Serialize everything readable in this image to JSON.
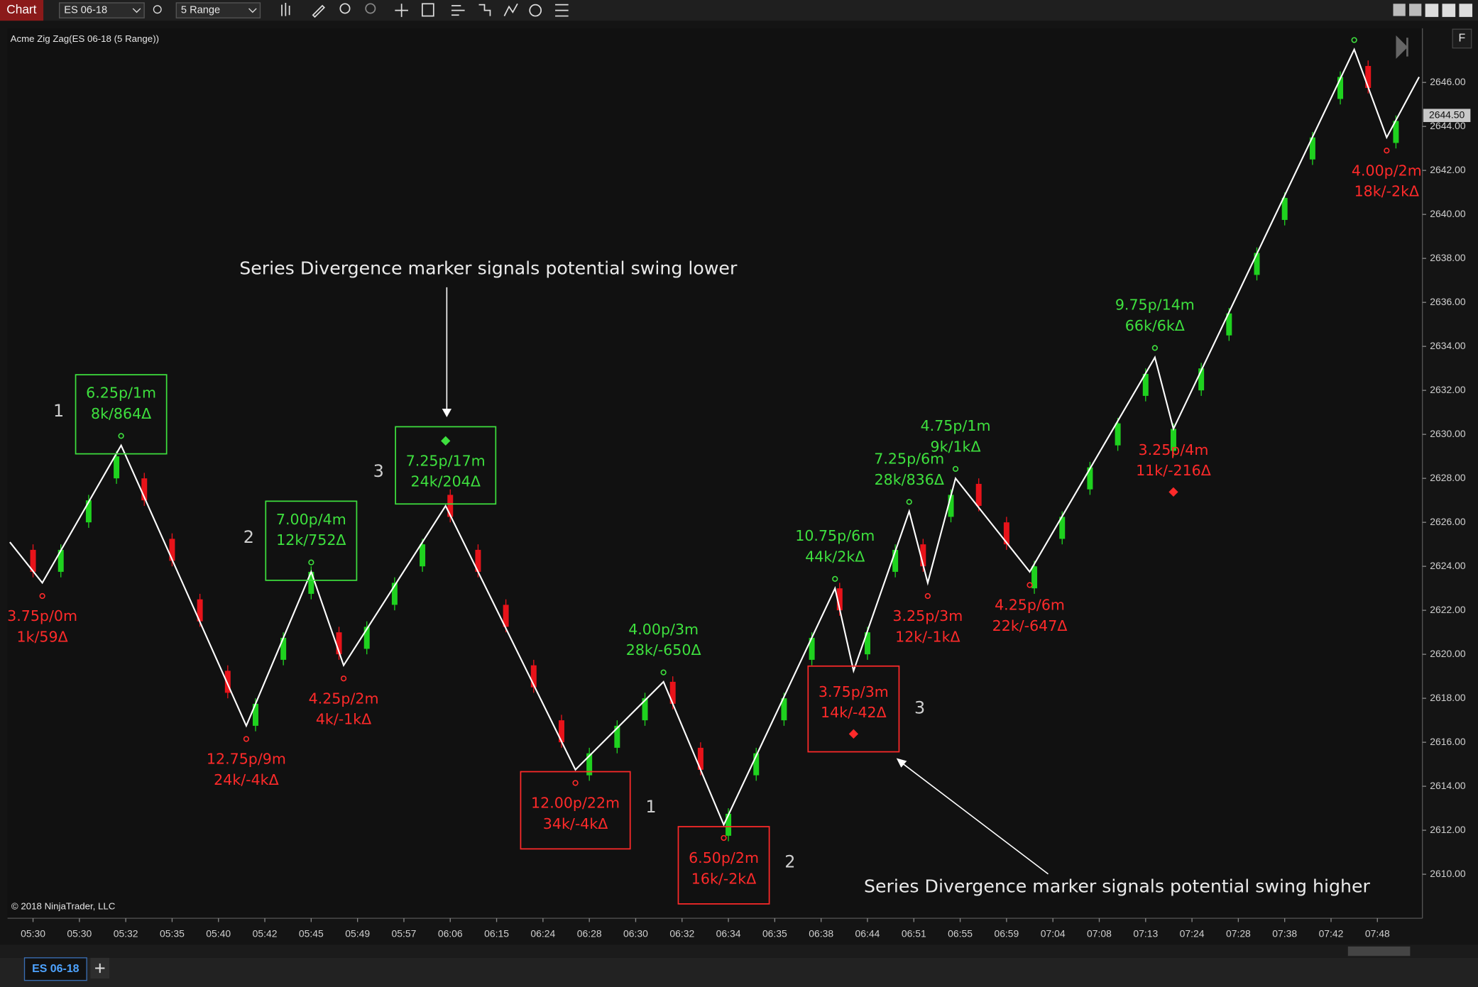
{
  "toolbar": {
    "label": "Chart",
    "instrument": "ES 06-18",
    "interval": "5 Range"
  },
  "tab": "ES 06-18",
  "panel_button": "F",
  "chart_data": {
    "type": "candlestick",
    "title": "Acme Zig Zag(ES 06-18 (5 Range))",
    "copyright": "© 2018 NinjaTrader, LLC",
    "annotations": [
      "Series Divergence marker signals potential swing lower",
      "Series Divergence marker signals potential swing higher"
    ],
    "up_color": "#1fd21f",
    "down_color": "#e8131a",
    "line_color": "#ffffff",
    "high_label_color": "#3ee03e",
    "low_label_color": "#ff2a2a",
    "grid": false,
    "xlim": [
      -5.5,
      299.5
    ],
    "xticks": [
      {
        "value": 0,
        "label": "05:30"
      },
      {
        "value": 10,
        "label": "05:30"
      },
      {
        "value": 20,
        "label": "05:32"
      },
      {
        "value": 30,
        "label": "05:35"
      },
      {
        "value": 40,
        "label": "05:40"
      },
      {
        "value": 50,
        "label": "05:42"
      },
      {
        "value": 60,
        "label": "05:45"
      },
      {
        "value": 70,
        "label": "05:49"
      },
      {
        "value": 80,
        "label": "05:57"
      },
      {
        "value": 90,
        "label": "06:06"
      },
      {
        "value": 100,
        "label": "06:15"
      },
      {
        "value": 110,
        "label": "06:24"
      },
      {
        "value": 120,
        "label": "06:28"
      },
      {
        "value": 130,
        "label": "06:30"
      },
      {
        "value": 140,
        "label": "06:32"
      },
      {
        "value": 150,
        "label": "06:34"
      },
      {
        "value": 160,
        "label": "06:35"
      },
      {
        "value": 170,
        "label": "06:38"
      },
      {
        "value": 180,
        "label": "06:44"
      },
      {
        "value": 190,
        "label": "06:51"
      },
      {
        "value": 200,
        "label": "06:55"
      },
      {
        "value": 210,
        "label": "06:59"
      },
      {
        "value": 220,
        "label": "07:04"
      },
      {
        "value": 230,
        "label": "07:08"
      },
      {
        "value": 240,
        "label": "07:13"
      },
      {
        "value": 250,
        "label": "07:24"
      },
      {
        "value": 260,
        "label": "07:28"
      },
      {
        "value": 270,
        "label": "07:38"
      },
      {
        "value": 280,
        "label": "07:42"
      },
      {
        "value": 290,
        "label": "07:48"
      }
    ],
    "ylim": [
      2608,
      2648.25
    ],
    "yticks": [
      {
        "value": 2610,
        "label": "2610.00"
      },
      {
        "value": 2612,
        "label": "2612.00"
      },
      {
        "value": 2614,
        "label": "2614.00"
      },
      {
        "value": 2616,
        "label": "2616.00"
      },
      {
        "value": 2618,
        "label": "2618.00"
      },
      {
        "value": 2620,
        "label": "2620.00"
      },
      {
        "value": 2622,
        "label": "2622.00"
      },
      {
        "value": 2624,
        "label": "2624.00"
      },
      {
        "value": 2626,
        "label": "2626.00"
      },
      {
        "value": 2628,
        "label": "2628.00"
      },
      {
        "value": 2630,
        "label": "2630.00"
      },
      {
        "value": 2632,
        "label": "2632.00"
      },
      {
        "value": 2634,
        "label": "2634.00"
      },
      {
        "value": 2636,
        "label": "2636.00"
      },
      {
        "value": 2638,
        "label": "2638.00"
      },
      {
        "value": 2640,
        "label": "2640.00"
      },
      {
        "value": 2642,
        "label": "2642.00"
      },
      {
        "value": 2644,
        "label": "2644.00"
      },
      {
        "value": 2646,
        "label": "2646.00"
      }
    ],
    "last_price": {
      "value": 2644.5,
      "label": "2644.50"
    },
    "candles": {
      "x": [
        0,
        6,
        12,
        18,
        24,
        30,
        36,
        42,
        48,
        54,
        60,
        66,
        72,
        78,
        84,
        90,
        96,
        102,
        108,
        114,
        120,
        126,
        132,
        138,
        144,
        150,
        156,
        162,
        168,
        174,
        180,
        186,
        192,
        198,
        204,
        210,
        216,
        222,
        228,
        234,
        240,
        246,
        252,
        258,
        264,
        270,
        276,
        282,
        288,
        294
      ],
      "open": [
        2624.75,
        2623.75,
        2626,
        2628,
        2628,
        2625.25,
        2622.5,
        2619.25,
        2616.75,
        2619.75,
        2622.75,
        2621,
        2620.25,
        2622.25,
        2624,
        2627.25,
        2624.75,
        2622.25,
        2619.5,
        2617,
        2614.5,
        2615.75,
        2617,
        2618.75,
        2615.75,
        2611.75,
        2614.5,
        2617,
        2619.75,
        2623,
        2620,
        2623.75,
        2625,
        2626.25,
        2627.75,
        2626,
        2623,
        2625.25,
        2627.5,
        2629.5,
        2631.75,
        2629.25,
        2632,
        2634.5,
        2637.25,
        2639.75,
        2642.5,
        2645.25,
        2646.75,
        2643.25
      ],
      "high": [
        2625,
        2625,
        2627.25,
        2629.25,
        2628.25,
        2625.5,
        2622.75,
        2619.5,
        2618,
        2621,
        2624,
        2621.25,
        2621.5,
        2623.5,
        2625.25,
        2627.5,
        2625,
        2622.5,
        2619.75,
        2617.25,
        2615.75,
        2617,
        2618.25,
        2619,
        2616,
        2613,
        2615.75,
        2618.25,
        2621,
        2623.25,
        2621.25,
        2625,
        2625.25,
        2627.5,
        2628,
        2626.25,
        2624.25,
        2626.5,
        2628.75,
        2630.75,
        2633,
        2630.5,
        2633.25,
        2635.75,
        2638.5,
        2641,
        2643.75,
        2646.5,
        2647,
        2644.5
      ],
      "low": [
        2623.5,
        2623.5,
        2625.75,
        2627.75,
        2626.75,
        2624,
        2621.25,
        2618,
        2616.5,
        2619.5,
        2622.5,
        2619.75,
        2620,
        2622,
        2623.75,
        2626,
        2623.5,
        2621,
        2618.25,
        2615.75,
        2614.25,
        2615.5,
        2616.75,
        2617.5,
        2614.5,
        2611.5,
        2614.25,
        2616.75,
        2619.5,
        2621.75,
        2619.75,
        2623.5,
        2623.75,
        2626,
        2626.5,
        2624.75,
        2622.75,
        2625,
        2627.25,
        2629.25,
        2631.5,
        2629,
        2631.75,
        2634.25,
        2637,
        2639.5,
        2642.25,
        2645,
        2645.5,
        2643
      ],
      "close": [
        2623.75,
        2624.75,
        2627,
        2629,
        2627,
        2624.25,
        2621.5,
        2618.25,
        2617.75,
        2620.75,
        2623.75,
        2620,
        2621.25,
        2623.25,
        2625,
        2626.25,
        2623.75,
        2621.25,
        2618.5,
        2616,
        2615.5,
        2616.75,
        2618,
        2617.75,
        2614.75,
        2612.75,
        2615.5,
        2618,
        2620.75,
        2622,
        2621,
        2624.75,
        2624,
        2627.25,
        2626.75,
        2625,
        2624,
        2626.25,
        2628.5,
        2630.5,
        2632.75,
        2630.25,
        2633,
        2635.5,
        2638.25,
        2640.75,
        2643.5,
        2646.25,
        2645.75,
        2644.25
      ]
    },
    "zigzag": [
      {
        "x": -5,
        "y": 2625.1
      },
      {
        "x": 2,
        "y": 2623.25,
        "labels": [
          "3.75p/0m",
          "1k/59Δ"
        ]
      },
      {
        "x": 19,
        "y": 2629.5,
        "labels": [
          "6.25p/1m",
          "8k/864Δ"
        ],
        "boxed": true,
        "count": 1
      },
      {
        "x": 46,
        "y": 2616.75,
        "labels": [
          "12.75p/9m",
          "24k/-4kΔ"
        ]
      },
      {
        "x": 60,
        "y": 2623.75,
        "labels": [
          "7.00p/4m",
          "12k/752Δ"
        ],
        "boxed": true,
        "count": 2
      },
      {
        "x": 67,
        "y": 2619.5,
        "labels": [
          "4.25p/2m",
          "4k/-1kΔ"
        ]
      },
      {
        "x": 89,
        "y": 2626.75,
        "labels": [
          "7.25p/17m",
          "24k/204Δ"
        ],
        "boxed": true,
        "divergence": true,
        "count": 3
      },
      {
        "x": 117,
        "y": 2614.75,
        "labels": [
          "12.00p/22m",
          "34k/-4kΔ"
        ],
        "boxed": true,
        "count": 1
      },
      {
        "x": 136,
        "y": 2618.75,
        "labels": [
          "4.00p/3m",
          "28k/-650Δ"
        ]
      },
      {
        "x": 149,
        "y": 2612.25,
        "labels": [
          "6.50p/2m",
          "16k/-2kΔ"
        ],
        "boxed": true,
        "count": 2
      },
      {
        "x": 173,
        "y": 2623,
        "labels": [
          "10.75p/6m",
          "44k/2kΔ"
        ]
      },
      {
        "x": 177,
        "y": 2619.25,
        "labels": [
          "3.75p/3m",
          "14k/-42Δ"
        ],
        "boxed": true,
        "divergence": true,
        "count": 3
      },
      {
        "x": 189,
        "y": 2626.5,
        "labels": [
          "7.25p/6m",
          "28k/836Δ"
        ]
      },
      {
        "x": 193,
        "y": 2623.25,
        "labels": [
          "3.25p/3m",
          "12k/-1kΔ"
        ]
      },
      {
        "x": 199,
        "y": 2628,
        "labels": [
          "4.75p/1m",
          "9k/1kΔ"
        ]
      },
      {
        "x": 215,
        "y": 2623.75,
        "labels": [
          "4.25p/6m",
          "22k/-647Δ"
        ]
      },
      {
        "x": 242,
        "y": 2633.5,
        "labels": [
          "9.75p/14m",
          "66k/6kΔ"
        ]
      },
      {
        "x": 246,
        "y": 2630.25,
        "labels": [
          "3.25p/4m",
          "11k/-216Δ"
        ],
        "divergence": true
      },
      {
        "x": 285,
        "y": 2647.5
      },
      {
        "x": 292,
        "y": 2643.5,
        "labels": [
          "4.00p/2m",
          "18k/-2kΔ"
        ]
      },
      {
        "x": 299,
        "y": 2646.25
      }
    ]
  }
}
